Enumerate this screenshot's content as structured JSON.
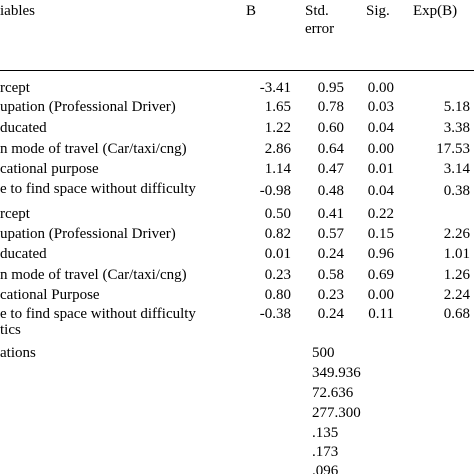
{
  "header": {
    "variables": "iables",
    "b": "B",
    "std_error_line1": "Std.",
    "std_error_line2": "error",
    "sig": "Sig.",
    "expb": "Exp(B)"
  },
  "rows": [
    {
      "label": "rcept",
      "b": "-3.41",
      "se": "0.95",
      "sig": "0.00",
      "expb": ""
    },
    {
      "label": "upation (Professional Driver)",
      "b": "1.65",
      "se": "0.78",
      "sig": "0.03",
      "expb": "5.18"
    },
    {
      "label": "ducated",
      "b": "1.22",
      "se": "0.60",
      "sig": "0.04",
      "expb": "3.38"
    },
    {
      "label": "n mode of travel (Car/taxi/cng)",
      "b": "2.86",
      "se": "0.64",
      "sig": "0.00",
      "expb": "17.53"
    },
    {
      "label": "cational purpose",
      "b": "1.14",
      "se": "0.47",
      "sig": "0.01",
      "expb": "3.14"
    },
    {
      "label": "e to find space without difficulty",
      "b": "-0.98",
      "se": "0.48",
      "sig": "0.04",
      "expb": "0.38"
    },
    {
      "label": "rcept",
      "b": "0.50",
      "se": "0.41",
      "sig": "0.22",
      "expb": ""
    },
    {
      "label": "upation (Professional Driver)",
      "b": "0.82",
      "se": "0.57",
      "sig": "0.15",
      "expb": "2.26"
    },
    {
      "label": "ducated",
      "b": "0.01",
      "se": "0.24",
      "sig": "0.96",
      "expb": "1.01"
    },
    {
      "label": "n mode of travel (Car/taxi/cng)",
      "b": "0.23",
      "se": "0.58",
      "sig": "0.69",
      "expb": "1.26"
    },
    {
      "label": "cational Purpose",
      "b": "0.80",
      "se": "0.23",
      "sig": "0.00",
      "expb": "2.24"
    },
    {
      "label": "e to find space without difficulty",
      "b": "-0.38",
      "se": "0.24",
      "sig": "0.11",
      "expb": "0.68"
    }
  ],
  "stats_label": "tics",
  "observations_label": "ations",
  "stats_values": [
    "500",
    "349.936",
    "72.636",
    "277.300",
    ".135",
    ".173",
    ".096"
  ]
}
